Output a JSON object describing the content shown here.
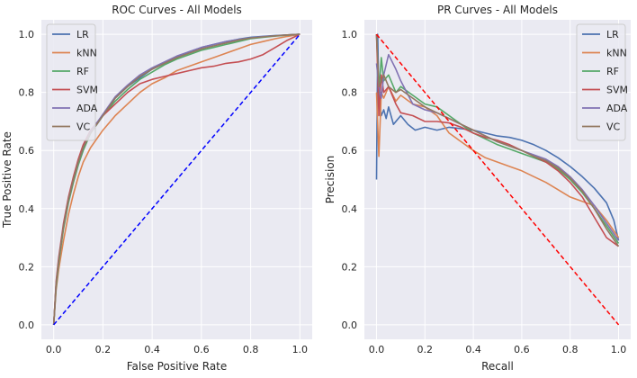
{
  "chart_data": [
    {
      "type": "line",
      "title": "ROC Curves - All Models",
      "xlabel": "False Positive Rate",
      "ylabel": "True Positive Rate",
      "xlim": [
        -0.05,
        1.05
      ],
      "ylim": [
        -0.05,
        1.05
      ],
      "xticks": [
        0.0,
        0.2,
        0.4,
        0.6,
        0.8,
        1.0
      ],
      "yticks": [
        0.0,
        0.2,
        0.4,
        0.6,
        0.8,
        1.0
      ],
      "xtick_labels": [
        "0.0",
        "0.2",
        "0.4",
        "0.6",
        "0.8",
        "1.0"
      ],
      "ytick_labels": [
        "0.0",
        "0.2",
        "0.4",
        "0.6",
        "0.8",
        "1.0"
      ],
      "grid": true,
      "legend_position": "top-left",
      "reference_line": {
        "x": [
          0,
          1
        ],
        "y": [
          0,
          1
        ],
        "color": "#0000ff",
        "style": "dashed"
      },
      "series": [
        {
          "name": "LR",
          "color": "#4c72b0",
          "x": [
            0,
            0.01,
            0.02,
            0.04,
            0.06,
            0.08,
            0.1,
            0.12,
            0.15,
            0.2,
            0.25,
            0.3,
            0.35,
            0.4,
            0.45,
            0.5,
            0.55,
            0.6,
            0.65,
            0.7,
            0.75,
            0.8,
            0.85,
            0.9,
            0.95,
            1.0
          ],
          "y": [
            0,
            0.14,
            0.22,
            0.34,
            0.43,
            0.5,
            0.56,
            0.61,
            0.66,
            0.72,
            0.78,
            0.82,
            0.85,
            0.88,
            0.9,
            0.92,
            0.94,
            0.955,
            0.965,
            0.975,
            0.983,
            0.99,
            0.993,
            0.996,
            0.998,
            1.0
          ]
        },
        {
          "name": "kNN",
          "color": "#dd8452",
          "x": [
            0,
            0.01,
            0.02,
            0.04,
            0.06,
            0.08,
            0.1,
            0.12,
            0.15,
            0.2,
            0.25,
            0.3,
            0.35,
            0.4,
            0.45,
            0.5,
            0.55,
            0.6,
            0.65,
            0.7,
            0.75,
            0.8,
            0.85,
            0.9,
            0.95,
            1.0
          ],
          "y": [
            0,
            0.12,
            0.19,
            0.29,
            0.38,
            0.45,
            0.51,
            0.56,
            0.61,
            0.67,
            0.72,
            0.76,
            0.8,
            0.83,
            0.85,
            0.875,
            0.89,
            0.905,
            0.92,
            0.935,
            0.95,
            0.965,
            0.975,
            0.985,
            0.993,
            1.0
          ]
        },
        {
          "name": "RF",
          "color": "#55a868",
          "x": [
            0,
            0.01,
            0.02,
            0.04,
            0.06,
            0.08,
            0.1,
            0.12,
            0.15,
            0.2,
            0.25,
            0.3,
            0.35,
            0.4,
            0.45,
            0.5,
            0.55,
            0.6,
            0.65,
            0.7,
            0.75,
            0.8,
            0.85,
            0.9,
            0.95,
            1.0
          ],
          "y": [
            0,
            0.13,
            0.21,
            0.33,
            0.42,
            0.49,
            0.55,
            0.6,
            0.66,
            0.72,
            0.77,
            0.81,
            0.845,
            0.87,
            0.895,
            0.915,
            0.93,
            0.945,
            0.955,
            0.965,
            0.975,
            0.985,
            0.99,
            0.994,
            0.997,
            1.0
          ]
        },
        {
          "name": "SVM",
          "color": "#c44e52",
          "x": [
            0,
            0.01,
            0.02,
            0.04,
            0.06,
            0.08,
            0.1,
            0.12,
            0.15,
            0.2,
            0.25,
            0.3,
            0.35,
            0.4,
            0.45,
            0.5,
            0.55,
            0.6,
            0.65,
            0.7,
            0.75,
            0.8,
            0.85,
            0.9,
            0.95,
            1.0
          ],
          "y": [
            0,
            0.15,
            0.23,
            0.35,
            0.44,
            0.51,
            0.57,
            0.62,
            0.67,
            0.72,
            0.76,
            0.8,
            0.83,
            0.845,
            0.855,
            0.865,
            0.875,
            0.885,
            0.89,
            0.9,
            0.905,
            0.915,
            0.93,
            0.955,
            0.98,
            1.0
          ]
        },
        {
          "name": "ADA",
          "color": "#8172b3",
          "x": [
            0,
            0.01,
            0.02,
            0.04,
            0.06,
            0.08,
            0.1,
            0.12,
            0.15,
            0.2,
            0.25,
            0.3,
            0.35,
            0.4,
            0.45,
            0.5,
            0.55,
            0.6,
            0.65,
            0.7,
            0.75,
            0.8,
            0.85,
            0.9,
            0.95,
            1.0
          ],
          "y": [
            0,
            0.14,
            0.22,
            0.34,
            0.43,
            0.5,
            0.56,
            0.61,
            0.665,
            0.725,
            0.785,
            0.825,
            0.86,
            0.885,
            0.905,
            0.925,
            0.94,
            0.955,
            0.965,
            0.975,
            0.982,
            0.988,
            0.992,
            0.995,
            0.998,
            1.0
          ]
        },
        {
          "name": "VC",
          "color": "#937860",
          "x": [
            0,
            0.01,
            0.02,
            0.04,
            0.06,
            0.08,
            0.1,
            0.12,
            0.15,
            0.2,
            0.25,
            0.3,
            0.35,
            0.4,
            0.45,
            0.5,
            0.55,
            0.6,
            0.65,
            0.7,
            0.75,
            0.8,
            0.85,
            0.9,
            0.95,
            1.0
          ],
          "y": [
            0,
            0.14,
            0.22,
            0.34,
            0.43,
            0.5,
            0.56,
            0.61,
            0.66,
            0.72,
            0.78,
            0.82,
            0.855,
            0.88,
            0.9,
            0.92,
            0.935,
            0.95,
            0.96,
            0.97,
            0.98,
            0.987,
            0.991,
            0.995,
            0.998,
            1.0
          ]
        }
      ]
    },
    {
      "type": "line",
      "title": "PR Curves - All Models",
      "xlabel": "Recall",
      "ylabel": "Precision",
      "xlim": [
        -0.05,
        1.05
      ],
      "ylim": [
        -0.05,
        1.05
      ],
      "xticks": [
        0.0,
        0.2,
        0.4,
        0.6,
        0.8,
        1.0
      ],
      "yticks": [
        0.0,
        0.2,
        0.4,
        0.6,
        0.8,
        1.0
      ],
      "xtick_labels": [
        "0.0",
        "0.2",
        "0.4",
        "0.6",
        "0.8",
        "1.0"
      ],
      "ytick_labels": [
        "0.0",
        "0.2",
        "0.4",
        "0.6",
        "0.8",
        "1.0"
      ],
      "grid": true,
      "legend_position": "top-right",
      "reference_line": {
        "x": [
          0,
          1
        ],
        "y": [
          1,
          0
        ],
        "color": "#ff0000",
        "style": "dashed"
      },
      "series": [
        {
          "name": "LR",
          "color": "#4c72b0",
          "x": [
            0.0,
            0.005,
            0.01,
            0.02,
            0.03,
            0.04,
            0.05,
            0.07,
            0.1,
            0.13,
            0.16,
            0.2,
            0.25,
            0.3,
            0.35,
            0.4,
            0.45,
            0.5,
            0.55,
            0.6,
            0.65,
            0.7,
            0.75,
            0.8,
            0.85,
            0.9,
            0.95,
            0.98,
            1.0
          ],
          "y": [
            0.5,
            1.0,
            0.78,
            0.72,
            0.74,
            0.71,
            0.75,
            0.69,
            0.72,
            0.69,
            0.67,
            0.68,
            0.67,
            0.68,
            0.675,
            0.67,
            0.66,
            0.65,
            0.645,
            0.635,
            0.62,
            0.6,
            0.575,
            0.545,
            0.51,
            0.47,
            0.42,
            0.36,
            0.29
          ]
        },
        {
          "name": "kNN",
          "color": "#dd8452",
          "x": [
            0.0,
            0.01,
            0.02,
            0.03,
            0.05,
            0.08,
            0.1,
            0.15,
            0.2,
            0.25,
            0.3,
            0.35,
            0.4,
            0.45,
            0.5,
            0.55,
            0.6,
            0.65,
            0.7,
            0.75,
            0.8,
            0.85,
            0.9,
            0.95,
            1.0
          ],
          "y": [
            0.8,
            0.58,
            0.8,
            0.78,
            0.82,
            0.77,
            0.79,
            0.76,
            0.75,
            0.72,
            0.66,
            0.63,
            0.6,
            0.575,
            0.56,
            0.545,
            0.53,
            0.51,
            0.49,
            0.465,
            0.44,
            0.425,
            0.41,
            0.36,
            0.3
          ]
        },
        {
          "name": "RF",
          "color": "#55a868",
          "x": [
            0.0,
            0.01,
            0.02,
            0.03,
            0.05,
            0.08,
            0.1,
            0.15,
            0.2,
            0.25,
            0.3,
            0.35,
            0.4,
            0.45,
            0.5,
            0.55,
            0.6,
            0.65,
            0.7,
            0.75,
            0.8,
            0.85,
            0.9,
            0.95,
            1.0
          ],
          "y": [
            1.0,
            0.8,
            0.92,
            0.84,
            0.86,
            0.8,
            0.82,
            0.79,
            0.76,
            0.75,
            0.72,
            0.69,
            0.66,
            0.64,
            0.62,
            0.605,
            0.59,
            0.575,
            0.56,
            0.535,
            0.5,
            0.455,
            0.4,
            0.34,
            0.28
          ]
        },
        {
          "name": "SVM",
          "color": "#c44e52",
          "x": [
            0.0,
            0.01,
            0.02,
            0.03,
            0.05,
            0.08,
            0.1,
            0.15,
            0.2,
            0.25,
            0.3,
            0.35,
            0.4,
            0.45,
            0.5,
            0.55,
            0.6,
            0.65,
            0.7,
            0.75,
            0.8,
            0.85,
            0.9,
            0.95,
            1.0
          ],
          "y": [
            1.0,
            0.72,
            0.86,
            0.8,
            0.82,
            0.76,
            0.73,
            0.72,
            0.7,
            0.7,
            0.695,
            0.68,
            0.66,
            0.645,
            0.635,
            0.62,
            0.6,
            0.58,
            0.56,
            0.53,
            0.49,
            0.44,
            0.37,
            0.3,
            0.27
          ]
        },
        {
          "name": "ADA",
          "color": "#8172b3",
          "x": [
            0.0,
            0.01,
            0.02,
            0.03,
            0.05,
            0.08,
            0.1,
            0.15,
            0.2,
            0.25,
            0.3,
            0.35,
            0.4,
            0.45,
            0.5,
            0.55,
            0.6,
            0.65,
            0.7,
            0.75,
            0.8,
            0.85,
            0.9,
            0.95,
            1.0
          ],
          "y": [
            0.9,
            0.82,
            0.78,
            0.86,
            0.93,
            0.88,
            0.84,
            0.76,
            0.74,
            0.73,
            0.71,
            0.69,
            0.67,
            0.65,
            0.63,
            0.615,
            0.6,
            0.585,
            0.57,
            0.545,
            0.51,
            0.465,
            0.41,
            0.35,
            0.29
          ]
        },
        {
          "name": "VC",
          "color": "#937860",
          "x": [
            0.0,
            0.01,
            0.02,
            0.03,
            0.05,
            0.08,
            0.1,
            0.15,
            0.2,
            0.25,
            0.3,
            0.35,
            0.4,
            0.45,
            0.5,
            0.55,
            0.6,
            0.65,
            0.7,
            0.75,
            0.8,
            0.85,
            0.9,
            0.95,
            1.0
          ],
          "y": [
            1.0,
            0.82,
            0.84,
            0.86,
            0.82,
            0.8,
            0.81,
            0.78,
            0.75,
            0.73,
            0.71,
            0.69,
            0.67,
            0.65,
            0.63,
            0.615,
            0.6,
            0.58,
            0.565,
            0.54,
            0.505,
            0.46,
            0.4,
            0.33,
            0.27
          ]
        }
      ]
    }
  ]
}
